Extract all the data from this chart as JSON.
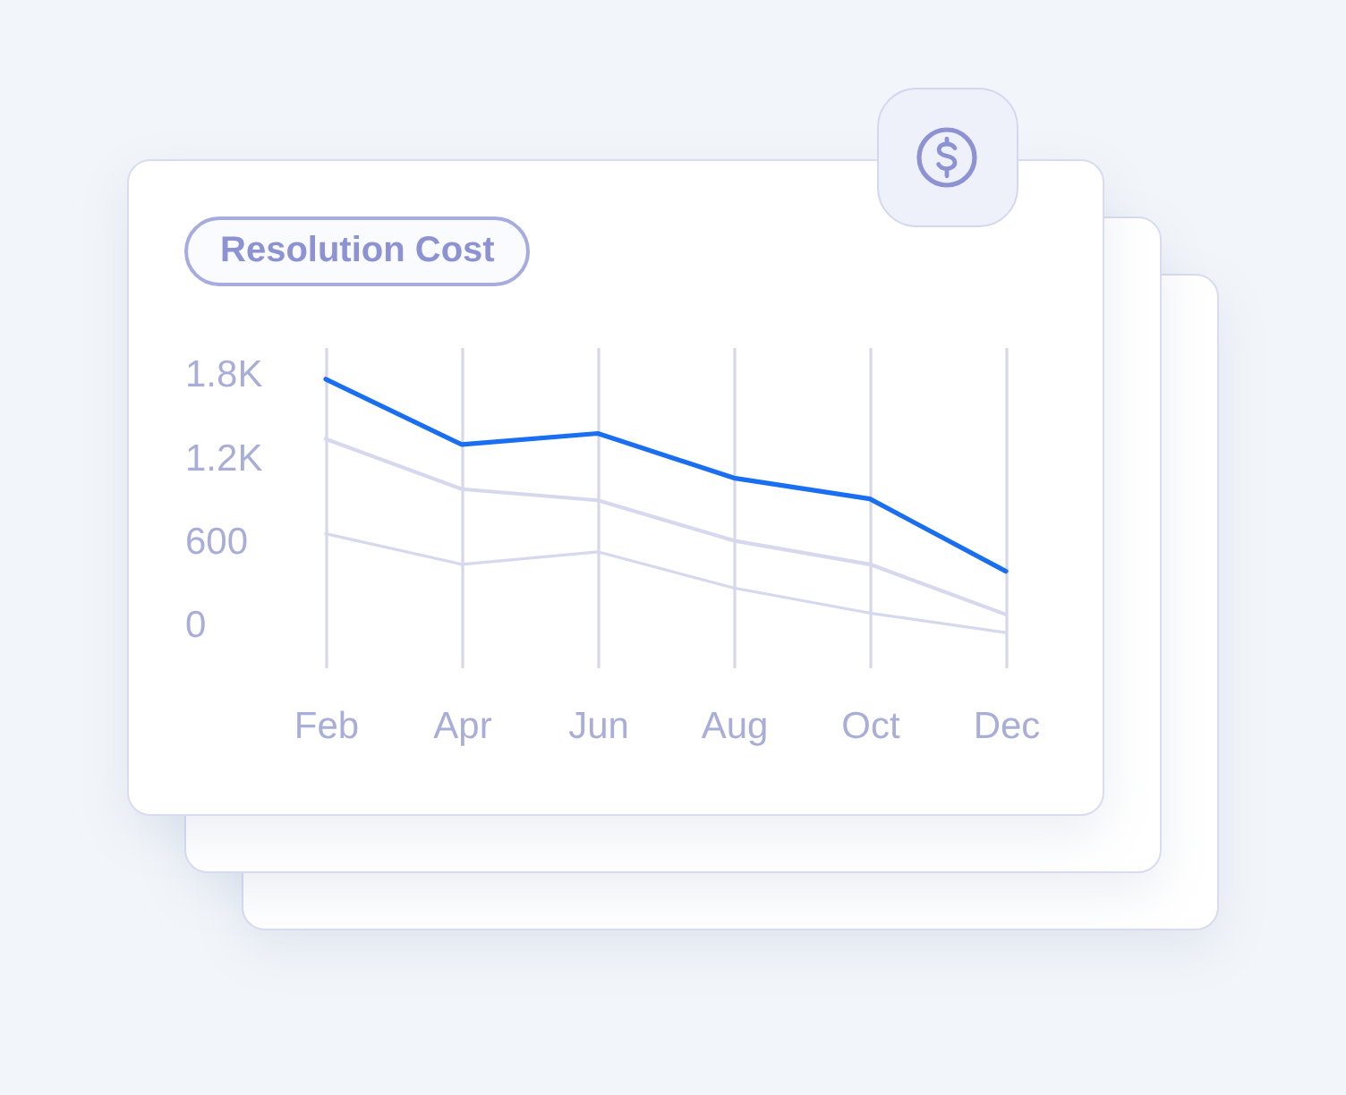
{
  "chart_data": {
    "type": "line",
    "title": "Resolution Cost",
    "categories": [
      "Feb",
      "Apr",
      "Jun",
      "Aug",
      "Oct",
      "Dec"
    ],
    "series": [
      {
        "color": "#1a6ef0",
        "values": [
          1770,
          1300,
          1380,
          1060,
          910,
          390
        ]
      },
      {
        "color": "#d6d8ee",
        "values": [
          1340,
          980,
          900,
          610,
          440,
          80
        ]
      },
      {
        "color": "#d6d8ee",
        "values": [
          660,
          440,
          530,
          270,
          90,
          -50
        ]
      }
    ],
    "ylim": [
      -300,
      2000
    ],
    "yticks": [
      0,
      600,
      {
        "value": 1200,
        "label": "1.2K"
      },
      {
        "value": 1800,
        "label": "1.8K"
      }
    ],
    "grid": "x"
  }
}
